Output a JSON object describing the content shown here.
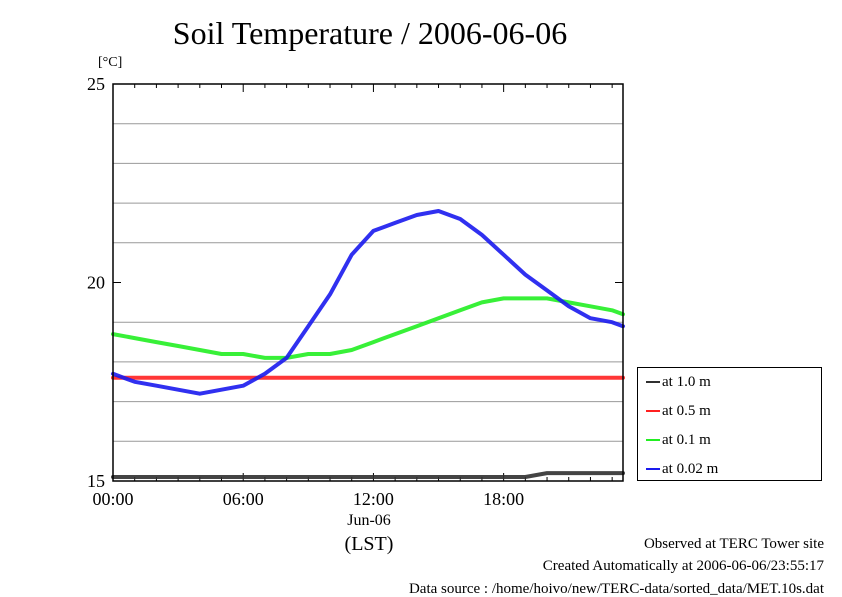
{
  "title": "Soil Temperature / 2006-06-06",
  "unit_label": "[°C]",
  "x_date_label": "Jun-06",
  "x_tz_label": "(LST)",
  "footer": {
    "line1": "Observed at TERC Tower site",
    "line2": "Created Automatically at 2006-06-06/23:55:17",
    "line3": "Data source : /home/hoivo/new/TERC-data/sorted_data/MET.10s.dat"
  },
  "chart_data": {
    "type": "line",
    "title": "Soil Temperature / 2006-06-06",
    "ylabel": "[°C]",
    "xlabel": "Jun-06 (LST)",
    "xlim": [
      0,
      23.5
    ],
    "ylim": [
      15,
      25
    ],
    "x_ticks": [
      0,
      6,
      12,
      18
    ],
    "x_tick_labels": [
      "00:00",
      "06:00",
      "12:00",
      "18:00"
    ],
    "y_ticks": [
      15,
      20,
      25
    ],
    "y_tick_labels": [
      "15",
      "20",
      "25"
    ],
    "y_gridlines": [
      16,
      17,
      18,
      19,
      21,
      22,
      23,
      24
    ],
    "grid": true,
    "legend_position": "right",
    "x": [
      0,
      1,
      2,
      3,
      4,
      5,
      6,
      7,
      8,
      9,
      10,
      11,
      12,
      13,
      14,
      15,
      16,
      17,
      18,
      19,
      20,
      21,
      22,
      23,
      23.5
    ],
    "series": [
      {
        "name": "at 1.0 m",
        "color": "#303030",
        "values": [
          15.1,
          15.1,
          15.1,
          15.1,
          15.1,
          15.1,
          15.1,
          15.1,
          15.1,
          15.1,
          15.1,
          15.1,
          15.1,
          15.1,
          15.1,
          15.1,
          15.1,
          15.1,
          15.1,
          15.1,
          15.2,
          15.2,
          15.2,
          15.2,
          15.2
        ]
      },
      {
        "name": "at 0.5 m",
        "color": "#ff2020",
        "values": [
          17.6,
          17.6,
          17.6,
          17.6,
          17.6,
          17.6,
          17.6,
          17.6,
          17.6,
          17.6,
          17.6,
          17.6,
          17.6,
          17.6,
          17.6,
          17.6,
          17.6,
          17.6,
          17.6,
          17.6,
          17.6,
          17.6,
          17.6,
          17.6,
          17.6
        ]
      },
      {
        "name": "at 0.1 m",
        "color": "#22ee22",
        "values": [
          18.7,
          18.6,
          18.5,
          18.4,
          18.3,
          18.2,
          18.2,
          18.1,
          18.1,
          18.2,
          18.2,
          18.3,
          18.5,
          18.7,
          18.9,
          19.1,
          19.3,
          19.5,
          19.6,
          19.6,
          19.6,
          19.5,
          19.4,
          19.3,
          19.2
        ]
      },
      {
        "name": "at 0.02 m",
        "color": "#1a1aee",
        "values": [
          17.7,
          17.5,
          17.4,
          17.3,
          17.2,
          17.3,
          17.4,
          17.7,
          18.1,
          18.9,
          19.7,
          20.7,
          21.3,
          21.5,
          21.7,
          21.8,
          21.6,
          21.2,
          20.7,
          20.2,
          19.8,
          19.4,
          19.1,
          19.0,
          18.9
        ]
      }
    ]
  }
}
